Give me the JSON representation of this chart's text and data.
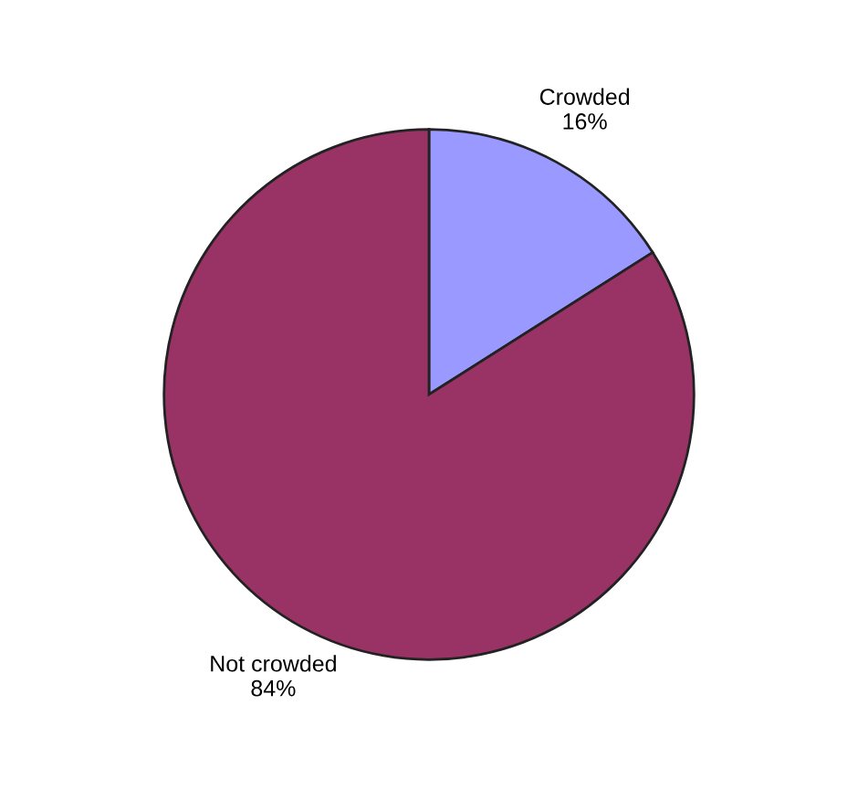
{
  "chart_data": {
    "type": "pie",
    "categories": [
      "Crowded",
      "Not crowded"
    ],
    "values": [
      16,
      84
    ],
    "value_labels": [
      "16%",
      "84%"
    ],
    "colors": [
      "#9999ff",
      "#993366"
    ],
    "legend": false
  }
}
